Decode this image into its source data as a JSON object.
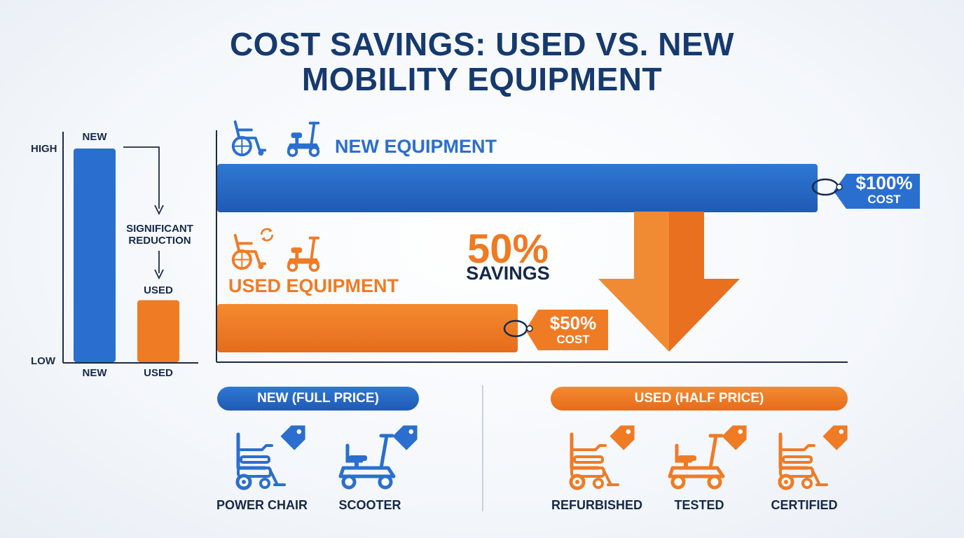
{
  "title": {
    "line1": "COST SAVINGS: USED VS. NEW",
    "line2": "MOBILITY EQUIPMENT"
  },
  "colors": {
    "new": "#2a6fcf",
    "used": "#ef7b25",
    "text": "#16294a",
    "title": "#163a6e"
  },
  "chart_data": [
    {
      "type": "bar",
      "categories": [
        "NEW",
        "USED"
      ],
      "values": [
        1.0,
        0.5
      ],
      "y_tick_labels": [
        "HIGH",
        "LOW"
      ],
      "top_labels": [
        "NEW",
        "USED"
      ],
      "annotation": {
        "line1": "SIGNIFICANT",
        "line2": "REDUCTION"
      }
    },
    {
      "type": "bar",
      "orientation": "horizontal",
      "categories": [
        "NEW EQUIPMENT",
        "USED EQUIPMENT"
      ],
      "values": [
        100,
        50
      ],
      "xlim": [
        0,
        100
      ],
      "tags": [
        {
          "value": "$100%",
          "label": "COST"
        },
        {
          "value": "$50%",
          "label": "COST"
        }
      ],
      "savings": {
        "value": "50%",
        "label": "SAVINGS"
      }
    }
  ],
  "legend": {
    "new": {
      "pill": "NEW (FULL PRICE)",
      "items": [
        {
          "label": "POWER CHAIR",
          "icon": "power-chair-icon"
        },
        {
          "label": "SCOOTER",
          "icon": "scooter-icon"
        }
      ]
    },
    "used": {
      "pill": "USED (HALF PRICE)",
      "items": [
        {
          "label": "REFURBISHED",
          "icon": "power-chair-icon"
        },
        {
          "label": "TESTED",
          "icon": "scooter-icon"
        },
        {
          "label": "CERTIFIED",
          "icon": "power-chair-icon"
        }
      ]
    }
  }
}
